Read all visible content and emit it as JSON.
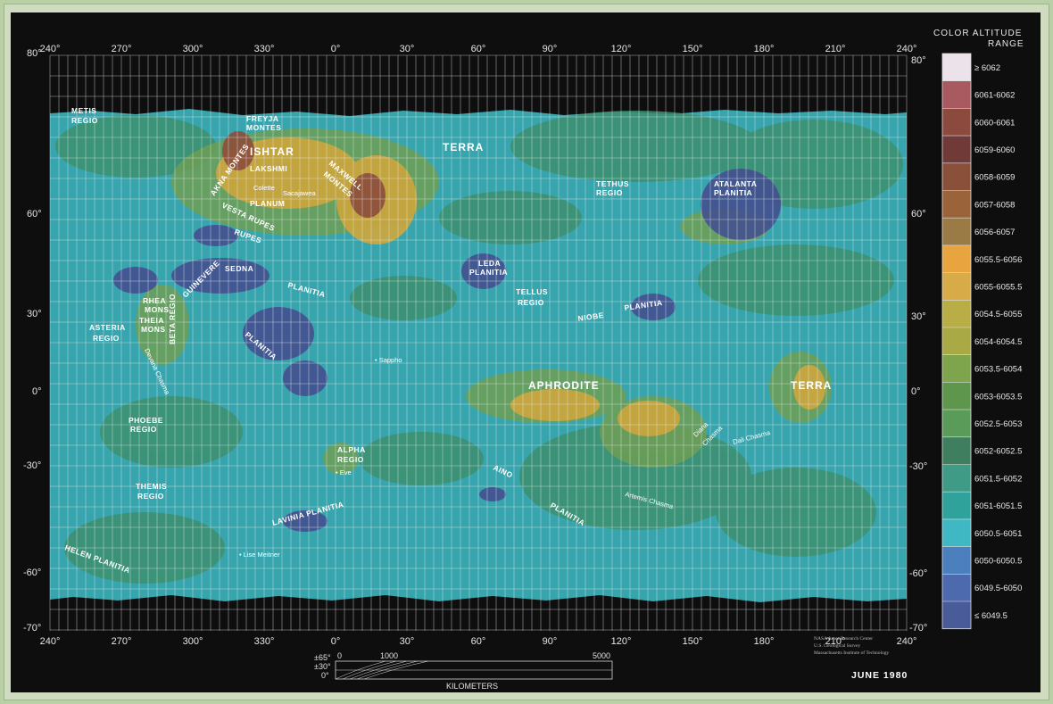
{
  "legend": {
    "title_line1": "COLOR ALTITUDE",
    "title_line2": "RANGE",
    "items": [
      {
        "label": "≥   6062",
        "color": "#ece3ea"
      },
      {
        "label": "6061-6062",
        "color": "#a95a60"
      },
      {
        "label": "6060-6061",
        "color": "#8c4a3e"
      },
      {
        "label": "6059-6060",
        "color": "#6f3a38"
      },
      {
        "label": "6058-6059",
        "color": "#8a5039"
      },
      {
        "label": "6057-6058",
        "color": "#9b633a"
      },
      {
        "label": "6056-6057",
        "color": "#9a7a45"
      },
      {
        "label": "6055.5-6056",
        "color": "#e7a43f"
      },
      {
        "label": "6055-6055.5",
        "color": "#d7ac48"
      },
      {
        "label": "6054.5-6055",
        "color": "#b8ae45"
      },
      {
        "label": "6054-6054.5",
        "color": "#a9a945"
      },
      {
        "label": "6053.5-6054",
        "color": "#7ea54c"
      },
      {
        "label": "6053-6053.5",
        "color": "#5f964d"
      },
      {
        "label": "6052.5-6053",
        "color": "#5b9b59"
      },
      {
        "label": "6052-6052.5",
        "color": "#3f7f5f"
      },
      {
        "label": "6051.5-6052",
        "color": "#3f9a86"
      },
      {
        "label": "6051-6051.5",
        "color": "#2fa39b"
      },
      {
        "label": "6050.5-6051",
        "color": "#40b8c4"
      },
      {
        "label": "6050-6050.5",
        "color": "#4b7fbd"
      },
      {
        "label": "6049.5-6050",
        "color": "#4c6aad"
      },
      {
        "label": "≤   6049.5",
        "color": "#4a5b9a"
      }
    ]
  },
  "axes": {
    "longitude_labels": [
      "240°",
      "270°",
      "300°",
      "330°",
      "0°",
      "30°",
      "60°",
      "90°",
      "120°",
      "150°",
      "180°",
      "210°",
      "240°"
    ],
    "latitude_labels": [
      "80°",
      "60°",
      "30°",
      "0°",
      "-30°",
      "-60°",
      "-70°"
    ]
  },
  "features": {
    "metis": [
      "METIS",
      "REGIO"
    ],
    "freyja": [
      "FREYJA",
      "MONTES"
    ],
    "ishtar": "ISHTAR",
    "lakshmi": [
      "LAKSHMI",
      "PLANUM"
    ],
    "colette": "Colette",
    "sacajawea": "Sacajawea",
    "akna": "AKNA MONTES",
    "maxwell": [
      "MAXWELL",
      "MONTES"
    ],
    "terra_north": "TERRA",
    "tethus": [
      "TETHUS",
      "REGIO"
    ],
    "atalanta": [
      "ATALANTA",
      "PLANITIA"
    ],
    "vesta": "VESTA RUPES",
    "rupes": "RUPES",
    "sedna": "SEDNA",
    "planitia1": "PLANITIA",
    "guinevere": "GUINEVERE",
    "leda": [
      "LEDA",
      "PLANITIA"
    ],
    "tellus": [
      "TELLUS",
      "REGIO"
    ],
    "niobe": "NIOBE",
    "planitia2": "PLANITIA",
    "rhea": [
      "RHEA",
      "MONS"
    ],
    "theia": [
      "THEIA",
      "MONS"
    ],
    "beta": "BETA REGIO",
    "asteria": [
      "ASTERIA",
      "REGIO"
    ],
    "planitia3": "PLANITIA",
    "devana": "Devana Chasma",
    "sappho": "• Sappho",
    "aphrodite": "APHRODITE",
    "terra_east": "TERRA",
    "phoebe": [
      "PHOEBE",
      "REGIO"
    ],
    "diana": [
      "Diana",
      "Chasma"
    ],
    "dali": "Dali Chasma",
    "alpha": [
      "ALPHA",
      "REGIO"
    ],
    "eve": "• Eve",
    "aino": "AINO",
    "themis": [
      "THEMIS",
      "REGIO"
    ],
    "artemis": "Artemis Chasma",
    "planitia4": "PLANITIA",
    "lavinia": "LAVINIA PLANITIA",
    "lise": "• Lise Meitner",
    "helen": "HELEN PLANITIA"
  },
  "credits": [
    "NASA  Ames Research Center",
    "U.S. Geological Survey",
    "Massachusetts Institute of Technology"
  ],
  "date": "JUNE  1980",
  "scale": {
    "lat_labels": [
      "±65°",
      "±30°",
      "0°"
    ],
    "ticks": [
      "0",
      "1000",
      "5000"
    ],
    "unit": "KILOMETERS"
  }
}
